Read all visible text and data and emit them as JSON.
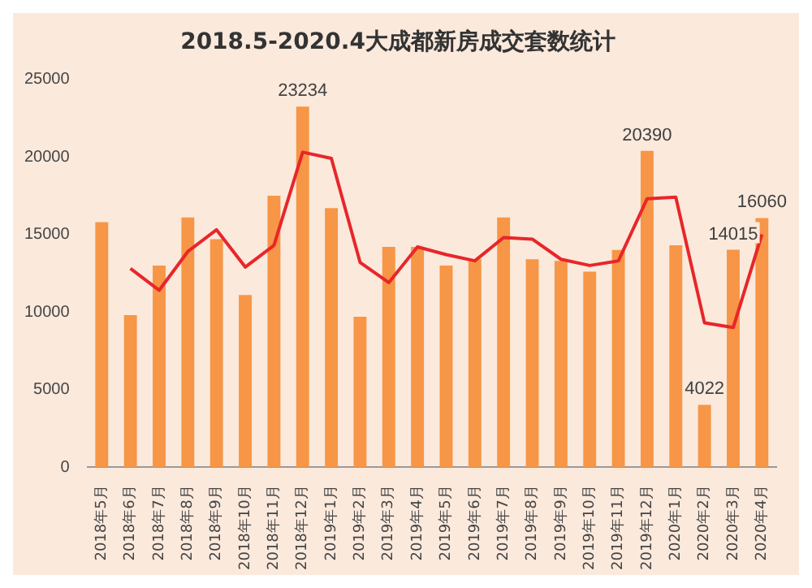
{
  "chart_data": {
    "type": "bar",
    "title": "2018.5-2020.4大成都新房成交套数统计",
    "categories": [
      "2018年5月",
      "2018年6月",
      "2018年7月",
      "2018年8月",
      "2018年9月",
      "2018年10月",
      "2018年11月",
      "2018年12月",
      "2019年1月",
      "2019年2月",
      "2019年3月",
      "2019年4月",
      "2019年5月",
      "2019年6月",
      "2019年7月",
      "2019年8月",
      "2019年9月",
      "2019年10月",
      "2019年11月",
      "2019年12月",
      "2020年1月",
      "2020年2月",
      "2020年3月",
      "2020年4月"
    ],
    "series": [
      {
        "color": "#f79646",
        "values": [
          15800,
          9800,
          13000,
          16100,
          14700,
          11100,
          17500,
          23234,
          16700,
          9700,
          14200,
          14200,
          13000,
          13400,
          16100,
          13400,
          13300,
          12600,
          14000,
          20390,
          14300,
          4022,
          14015,
          16060
        ],
        "value_labels": [
          null,
          null,
          null,
          null,
          null,
          null,
          null,
          "23234",
          null,
          null,
          null,
          null,
          null,
          null,
          null,
          null,
          null,
          null,
          null,
          "20390",
          null,
          "4022",
          "14015",
          "16060"
        ]
      },
      {
        "type": "line",
        "color": "#e8262a",
        "values": [
          null,
          12800,
          11400,
          13900,
          15300,
          12900,
          14300,
          20300,
          19900,
          13200,
          11900,
          14200,
          13700,
          13300,
          14800,
          14700,
          13400,
          13000,
          13300,
          17300,
          17400,
          9300,
          9000,
          15000
        ]
      }
    ],
    "ylim": [
      0,
      25000
    ],
    "yticks": [
      0,
      5000,
      10000,
      15000,
      20000,
      25000
    ],
    "grid": false,
    "legend": false,
    "marker": "none"
  }
}
